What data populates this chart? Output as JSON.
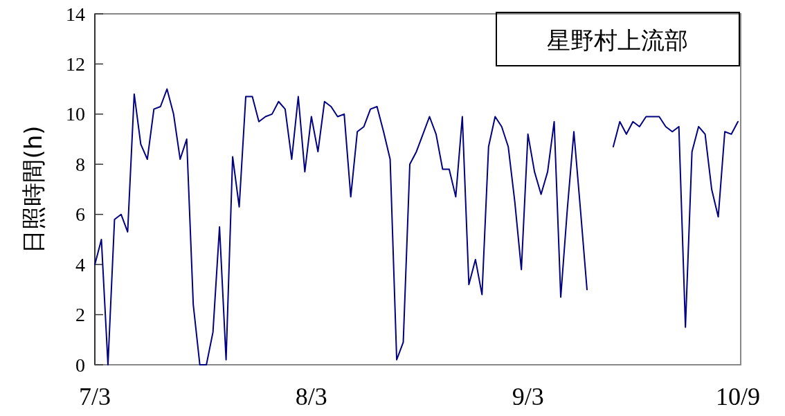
{
  "chart_data": {
    "type": "line",
    "title": "星野村上流部",
    "ylabel": "日照時間(h)",
    "categories": [
      "7/3",
      null,
      null,
      null,
      null,
      null,
      null,
      null,
      null,
      null,
      null,
      null,
      null,
      null,
      null,
      null,
      null,
      null,
      null,
      null,
      null,
      null,
      null,
      null,
      null,
      null,
      null,
      null,
      null,
      null,
      null,
      null,
      null,
      "8/3",
      null,
      null,
      null,
      null,
      null,
      null,
      null,
      null,
      null,
      null,
      null,
      null,
      null,
      null,
      null,
      null,
      null,
      null,
      null,
      null,
      null,
      null,
      null,
      null,
      null,
      null,
      null,
      null,
      null,
      null,
      null,
      null,
      "9/3",
      null,
      null,
      null,
      null,
      null,
      null,
      null,
      null,
      null,
      null,
      null,
      null,
      null,
      null,
      null,
      null,
      null,
      null,
      null,
      null,
      null,
      null,
      null,
      null,
      null,
      null,
      null,
      null,
      null,
      null,
      null,
      "10/9"
    ],
    "series": [
      {
        "color": "#000080",
        "values": [
          4.0,
          5.0,
          0.0,
          5.8,
          6.0,
          5.3,
          10.8,
          8.8,
          8.2,
          10.2,
          10.3,
          11.0,
          10.0,
          8.2,
          9.0,
          2.4,
          0.0,
          0.0,
          1.3,
          5.5,
          0.2,
          8.3,
          6.3,
          10.7,
          10.7,
          9.7,
          9.9,
          10.0,
          10.5,
          10.2,
          8.2,
          10.7,
          7.7,
          9.9,
          8.5,
          10.5,
          10.3,
          9.9,
          10.0,
          6.7,
          9.3,
          9.5,
          10.2,
          10.3,
          9.3,
          8.2,
          0.2,
          0.9,
          8.0,
          8.5,
          9.2,
          9.9,
          9.2,
          7.8,
          7.8,
          6.7,
          9.9,
          3.2,
          4.2,
          2.8,
          8.7,
          9.9,
          9.5,
          8.7,
          6.5,
          3.8,
          9.2,
          7.7,
          6.8,
          7.7,
          9.7,
          2.7,
          6.2,
          9.3,
          6.2,
          3.0,
          null,
          null,
          null,
          8.7,
          9.7,
          9.2,
          9.7,
          9.5,
          9.9,
          9.9,
          9.9,
          9.5,
          9.3,
          9.5,
          1.5,
          8.5,
          9.5,
          9.2,
          7.0,
          5.9,
          9.3,
          9.2,
          9.7
        ]
      }
    ],
    "ylim": [
      0,
      14
    ],
    "yticks": [
      0,
      2,
      4,
      6,
      8,
      10,
      12,
      14
    ]
  }
}
